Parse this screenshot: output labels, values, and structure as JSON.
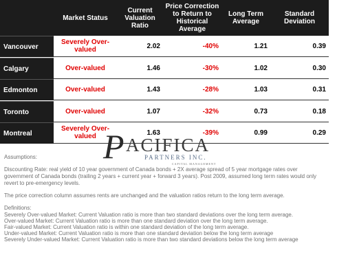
{
  "table": {
    "headers": [
      "Market Status",
      "Current Valuation Ratio",
      "Price Correction to Return to Historical Average",
      "Long Term Average",
      "Standard Deviation"
    ],
    "rows": [
      [
        "Vancouver",
        "Severely Over-valued",
        "2.02",
        "-40%",
        "1.21",
        "0.39"
      ],
      [
        "Calgary",
        "Over-valued",
        "1.46",
        "-30%",
        "1.02",
        "0.30"
      ],
      [
        "Edmonton",
        "Over-valued",
        "1.43",
        "-28%",
        "1.03",
        "0.31"
      ],
      [
        "Toronto",
        "Over-valued",
        "1.07",
        "-32%",
        "0.73",
        "0.18"
      ],
      [
        "Montreal",
        "Severely Over-valued",
        "1.63",
        "-39%",
        "0.99",
        "0.29"
      ]
    ]
  },
  "logo": {
    "initial": "P",
    "name": "ACIFICA",
    "sub": "PARTNERS INC.",
    "tagline": "CAPITAL MANAGEMENT"
  },
  "notes": [
    "Assumptions:",
    "Discounting Rate: real yield of 10 year government of Canada  bonds  + 2X  average spread of  5 year mortgage rates over",
    "government of Canada bonds (trailing 2 years + current year + forward 3 years). Post 2009, assumed long term rates would only",
    "revert to pre-emergency levels.",
    "The price correction column assumes rents are unchanged and the valuation ratios return to the long term average.",
    "Definitions:",
    "Severely Over-valued Market:  Current Valuation ratio is more than two standard deviations over the long term average.",
    "Over-valued Market:  Current Valuation ratio is more than one standard deviation over the long term average.",
    "Fair-valued Market:  Current Valuation ratio is within one standard deviation of the long term average.",
    "Under-valued Market:  Current Valuation ratio is more than one standard deviation below the long term average",
    "Severely Under-valued Market:  Current Valuation ratio is more than two standard deviations below the long term average"
  ]
}
